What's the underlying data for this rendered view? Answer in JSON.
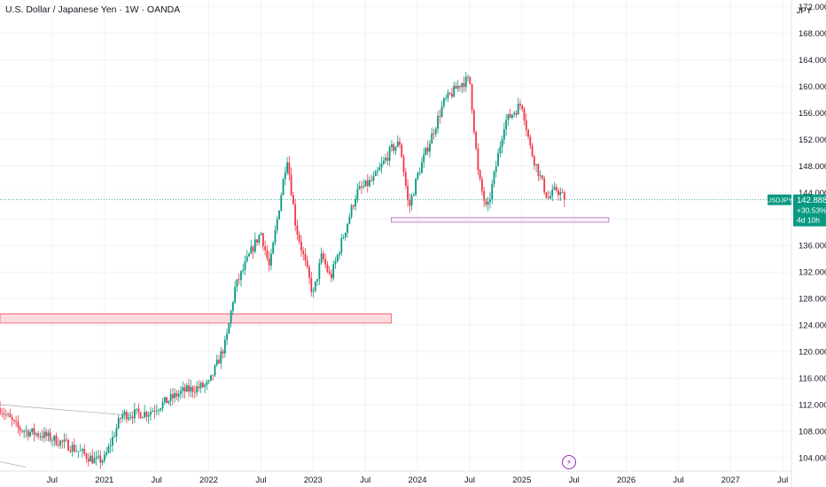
{
  "header": {
    "title": "U.S. Dollar / Japanese Yen · 1W · OANDA",
    "currency": "JPY"
  },
  "price_badge": {
    "symbol": "USDJPY",
    "price": "142.888",
    "change": "+30.53%",
    "countdown": "4d 10h"
  },
  "icons": {
    "event_marker": "lightning-icon"
  },
  "colors": {
    "up": "#089981",
    "down": "#f23645",
    "grid": "#f0f3fa",
    "axis_text": "#131722",
    "zone_fill": "#ffcdd2",
    "zone_border": "#f7525f",
    "support_border": "#ba68c8",
    "support_fill": "#f3e5f5"
  },
  "chart_data": {
    "type": "candlestick",
    "title": "U.S. Dollar / Japanese Yen · 1W · OANDA",
    "ylim": [
      102,
      173
    ],
    "y_ticks": [
      "104.000",
      "108.000",
      "112.000",
      "116.000",
      "120.000",
      "124.000",
      "128.000",
      "132.000",
      "136.000",
      "140.000",
      "144.000",
      "148.000",
      "152.000",
      "156.000",
      "160.000",
      "164.000",
      "168.000",
      "172.000"
    ],
    "x_ticks": [
      {
        "label": "Jul",
        "date": "2020-07"
      },
      {
        "label": "2021",
        "date": "2021-01"
      },
      {
        "label": "Jul",
        "date": "2021-07"
      },
      {
        "label": "2022",
        "date": "2022-01"
      },
      {
        "label": "Jul",
        "date": "2022-07"
      },
      {
        "label": "2023",
        "date": "2023-01"
      },
      {
        "label": "Jul",
        "date": "2023-07"
      },
      {
        "label": "2024",
        "date": "2024-01"
      },
      {
        "label": "Jul",
        "date": "2024-07"
      },
      {
        "label": "2025",
        "date": "2025-01"
      },
      {
        "label": "Jul",
        "date": "2025-07"
      },
      {
        "label": "2026",
        "date": "2026-01"
      },
      {
        "label": "Jul",
        "date": "2026-07"
      },
      {
        "label": "2027",
        "date": "2027-01"
      },
      {
        "label": "Jul",
        "date": "2027-07"
      }
    ],
    "x_range": [
      "2020-01",
      "2027-08"
    ],
    "last_price": 142.888,
    "price_path": [
      [
        "2020-01",
        111.5
      ],
      [
        "2020-03",
        108.5
      ],
      [
        "2020-04",
        108.0
      ],
      [
        "2020-06",
        107.4
      ],
      [
        "2020-09",
        105.8
      ],
      [
        "2020-12",
        103.5
      ],
      [
        "2021-01",
        103.8
      ],
      [
        "2021-03",
        110.5
      ],
      [
        "2021-06",
        110.8
      ],
      [
        "2021-10",
        114.0
      ],
      [
        "2022-01",
        115.0
      ],
      [
        "2022-03",
        121.5
      ],
      [
        "2022-04",
        129.5
      ],
      [
        "2022-06",
        135.5
      ],
      [
        "2022-07",
        138.0
      ],
      [
        "2022-08",
        132.5
      ],
      [
        "2022-10",
        149.5
      ],
      [
        "2022-11",
        139.0
      ],
      [
        "2023-01",
        128.5
      ],
      [
        "2023-02",
        134.5
      ],
      [
        "2023-03",
        131.0
      ],
      [
        "2023-06",
        144.0
      ],
      [
        "2023-08",
        146.0
      ],
      [
        "2023-10",
        150.5
      ],
      [
        "2023-11",
        151.5
      ],
      [
        "2023-12",
        141.5
      ],
      [
        "2024-01",
        146.5
      ],
      [
        "2024-04",
        157.5
      ],
      [
        "2024-06",
        160.5
      ],
      [
        "2024-07",
        161.0
      ],
      [
        "2024-08",
        146.5
      ],
      [
        "2024-09",
        141.0
      ],
      [
        "2024-11",
        154.5
      ],
      [
        "2025-01",
        157.5
      ],
      [
        "2025-02",
        150.5
      ],
      [
        "2025-04",
        143.0
      ],
      [
        "2025-05",
        144.5
      ],
      [
        "2025-06",
        142.9
      ]
    ],
    "zones": [
      {
        "name": "resistance-zone",
        "x": [
          "2020-01",
          "2023-10"
        ],
        "y": [
          124.3,
          125.7
        ]
      },
      {
        "name": "support-zone",
        "x": [
          "2023-10",
          "2025-11"
        ],
        "y": [
          139.5,
          140.2
        ]
      }
    ],
    "lines": [
      {
        "name": "trendline",
        "from": [
          "2020-01",
          112.0
        ],
        "to": [
          "2021-04",
          110.4
        ]
      },
      {
        "name": "lower-line",
        "from": [
          "2020-01",
          103.4
        ],
        "to": [
          "2020-04",
          102.6
        ]
      }
    ],
    "grid": true
  }
}
